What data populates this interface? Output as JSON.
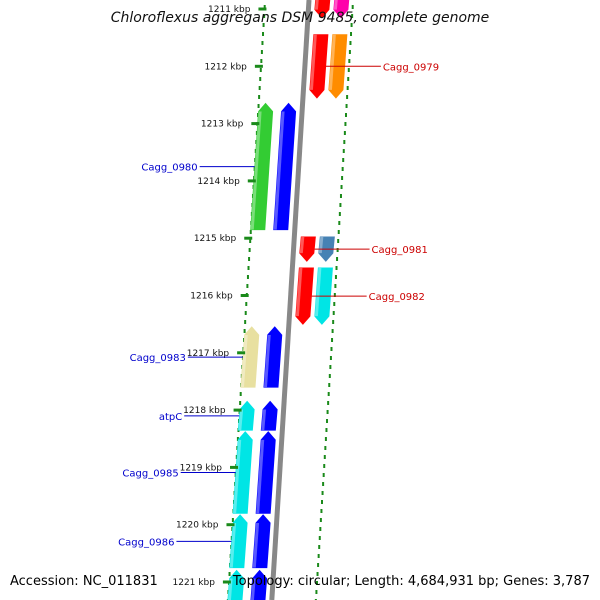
{
  "title": "Chloroflexus aggregans DSM 9485, complete genome",
  "accession_label": "Accession: NC_011831",
  "topology_label": "Topology: circular; Length: 4,684,931 bp; Genes: 3,787",
  "ruler": {
    "unit": "kbp",
    "ticks": [
      {
        "label": "1211 kbp",
        "kbp": 1211
      },
      {
        "label": "1212 kbp",
        "kbp": 1212
      },
      {
        "label": "1213 kbp",
        "kbp": 1213
      },
      {
        "label": "1214 kbp",
        "kbp": 1214
      },
      {
        "label": "1215 kbp",
        "kbp": 1215
      },
      {
        "label": "1216 kbp",
        "kbp": 1216
      },
      {
        "label": "1217 kbp",
        "kbp": 1217
      },
      {
        "label": "1218 kbp",
        "kbp": 1218
      },
      {
        "label": "1219 kbp",
        "kbp": 1219
      },
      {
        "label": "1220 kbp",
        "kbp": 1220
      },
      {
        "label": "1221 kbp",
        "kbp": 1221
      }
    ]
  },
  "colors": {
    "backbone": "#888888",
    "ruler_dots": "#1a8a1a",
    "left_label": "#0000cc",
    "right_label": "#cc0000"
  },
  "genes": [
    {
      "name": "",
      "strand": "+",
      "color": "#ff00aa",
      "start_kbp": 1210.6,
      "end_kbp": 1211.15,
      "track": "right-outer"
    },
    {
      "name": "",
      "strand": "+",
      "color": "#ff0000",
      "start_kbp": 1210.6,
      "end_kbp": 1211.15,
      "track": "right-inner"
    },
    {
      "name": "Cagg_0979",
      "strand": "+",
      "color": "#ff0000",
      "start_kbp": 1211.45,
      "end_kbp": 1212.55,
      "track": "right-inner"
    },
    {
      "name": "",
      "strand": "+",
      "color": "#ff8c00",
      "start_kbp": 1211.45,
      "end_kbp": 1212.55,
      "track": "right-outer"
    },
    {
      "name": "Cagg_0980",
      "strand": "-",
      "color": "#33cc33",
      "start_kbp": 1212.65,
      "end_kbp": 1214.85,
      "track": "left-outer"
    },
    {
      "name": "",
      "strand": "-",
      "color": "#0000ff",
      "start_kbp": 1212.65,
      "end_kbp": 1214.85,
      "track": "left-inner"
    },
    {
      "name": "Cagg_0981",
      "strand": "+",
      "color": "#ff0000",
      "start_kbp": 1214.98,
      "end_kbp": 1215.4,
      "track": "right-inner"
    },
    {
      "name": "",
      "strand": "+",
      "color": "#4682b4",
      "start_kbp": 1214.98,
      "end_kbp": 1215.4,
      "track": "right-outer"
    },
    {
      "name": "Cagg_0982",
      "strand": "+",
      "color": "#ff0000",
      "start_kbp": 1215.52,
      "end_kbp": 1216.5,
      "track": "right-inner"
    },
    {
      "name": "",
      "strand": "+",
      "color": "#00e5e5",
      "start_kbp": 1215.52,
      "end_kbp": 1216.5,
      "track": "right-outer"
    },
    {
      "name": "Cagg_0983",
      "strand": "-",
      "color": "#e8e0a0",
      "start_kbp": 1216.55,
      "end_kbp": 1217.6,
      "track": "left-outer"
    },
    {
      "name": "",
      "strand": "-",
      "color": "#0000ff",
      "start_kbp": 1216.55,
      "end_kbp": 1217.6,
      "track": "left-inner"
    },
    {
      "name": "atpC",
      "strand": "-",
      "color": "#00e5e5",
      "start_kbp": 1217.85,
      "end_kbp": 1218.35,
      "track": "left-outer"
    },
    {
      "name": "",
      "strand": "-",
      "color": "#0000ff",
      "start_kbp": 1217.85,
      "end_kbp": 1218.35,
      "track": "left-inner"
    },
    {
      "name": "Cagg_0985",
      "strand": "-",
      "color": "#00e5e5",
      "start_kbp": 1218.38,
      "end_kbp": 1219.8,
      "track": "left-outer"
    },
    {
      "name": "",
      "strand": "-",
      "color": "#0000ff",
      "start_kbp": 1218.38,
      "end_kbp": 1219.8,
      "track": "left-inner"
    },
    {
      "name": "Cagg_0986",
      "strand": "-",
      "color": "#00e5e5",
      "start_kbp": 1219.83,
      "end_kbp": 1220.75,
      "track": "left-outer"
    },
    {
      "name": "",
      "strand": "-",
      "color": "#0000ff",
      "start_kbp": 1219.83,
      "end_kbp": 1220.75,
      "track": "left-inner"
    },
    {
      "name": "",
      "strand": "-",
      "color": "#00e5e5",
      "start_kbp": 1220.8,
      "end_kbp": 1221.5,
      "track": "left-outer"
    },
    {
      "name": "",
      "strand": "-",
      "color": "#0000ff",
      "start_kbp": 1220.8,
      "end_kbp": 1221.5,
      "track": "left-inner"
    }
  ]
}
